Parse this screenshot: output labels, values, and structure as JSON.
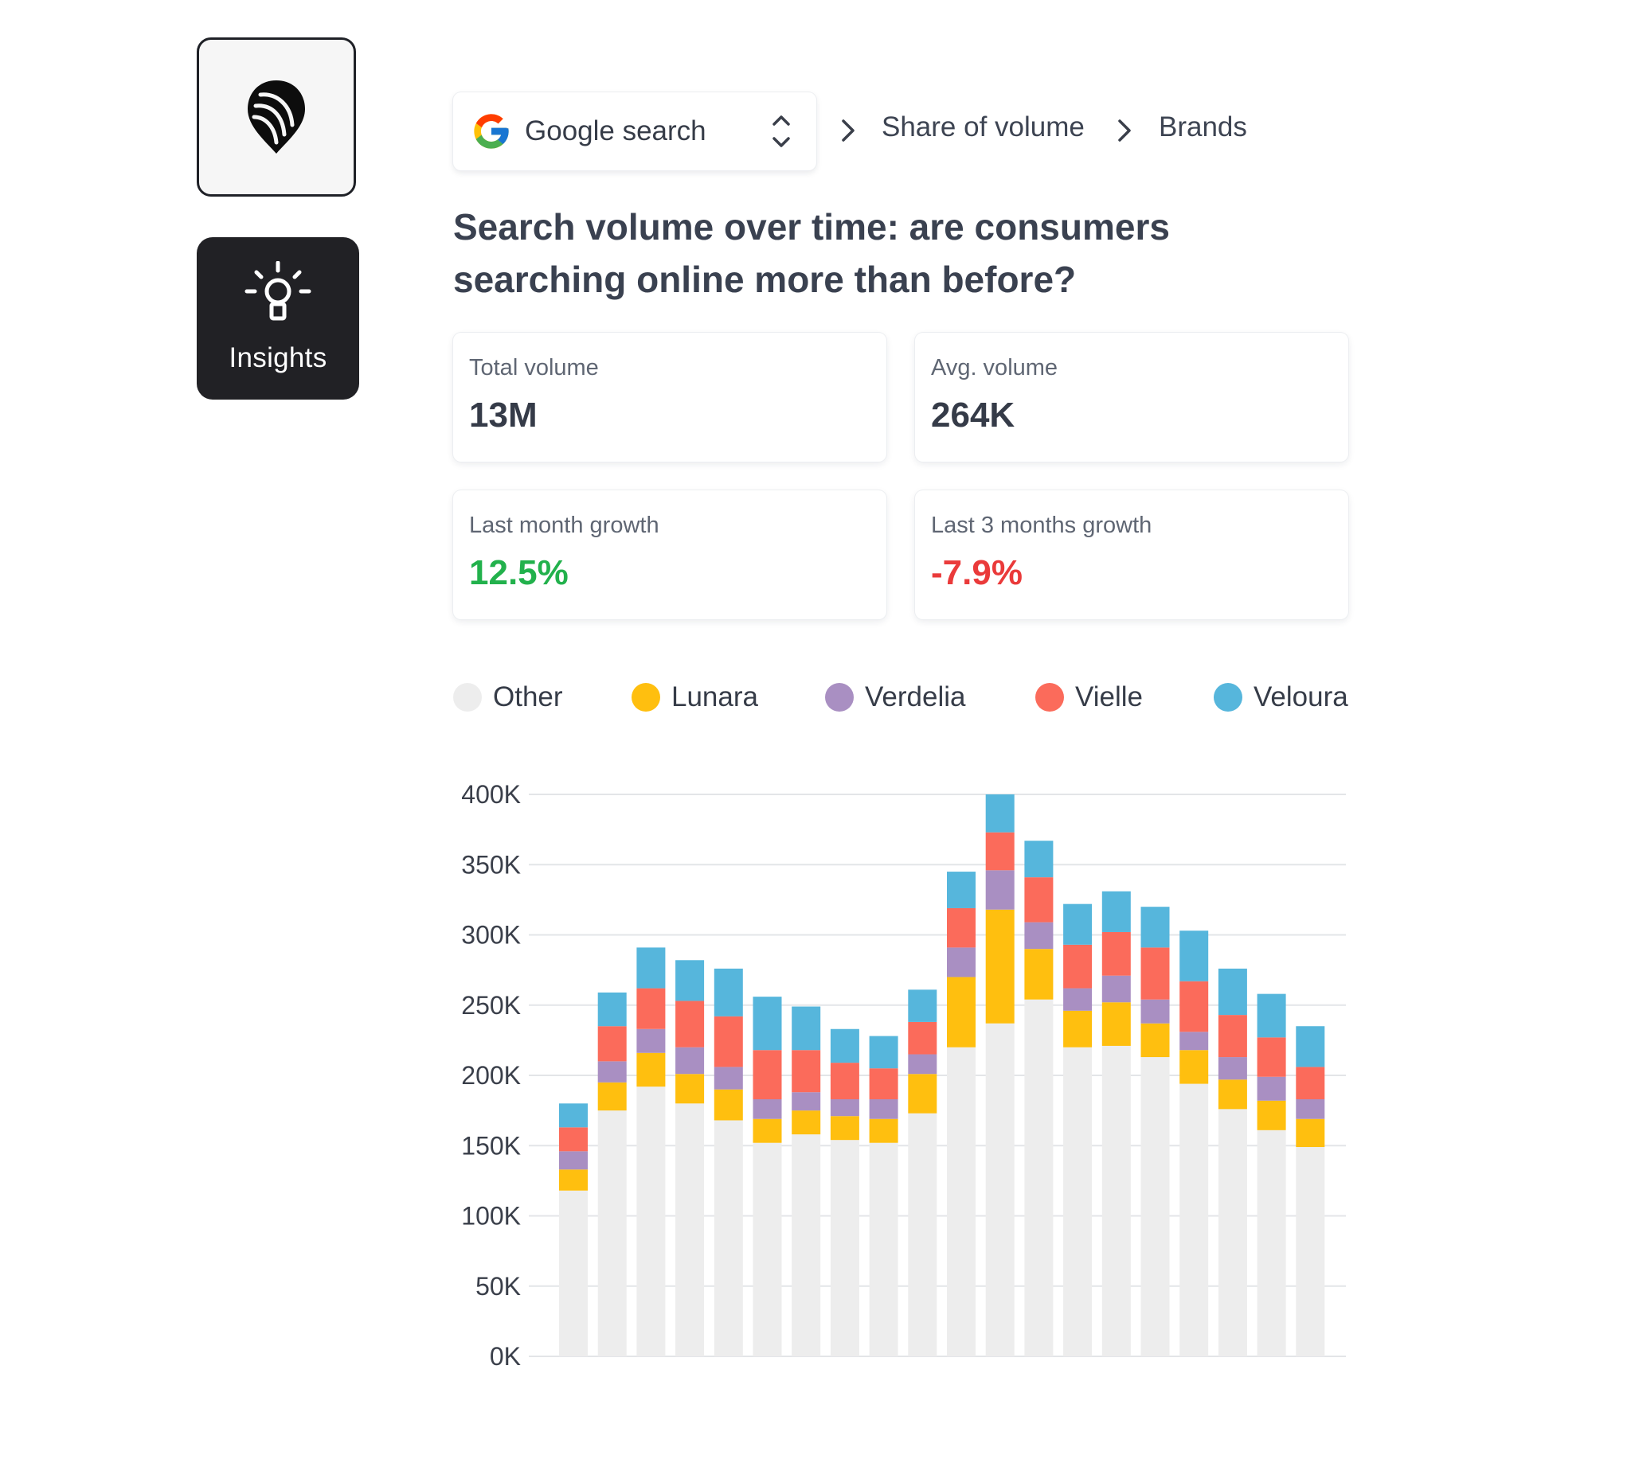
{
  "sidebar": {
    "logo_icon": "map-pin-logo-icon",
    "insights_icon": "lightbulb-icon",
    "insights_label": "Insights"
  },
  "breadcrumb": {
    "source_icon": "google-g-icon",
    "source_label": "Google search",
    "source_toggle_icon": "chevron-up-down-icon",
    "separator_icon": "chevron-right-icon",
    "items": [
      "Share of volume",
      "Brands"
    ]
  },
  "title": "Search volume over time: are consumers searching online more than before?",
  "metrics": [
    {
      "label": "Total volume",
      "value": "13M",
      "tone": "neutral"
    },
    {
      "label": "Avg. volume",
      "value": "264K",
      "tone": "neutral"
    },
    {
      "label": "Last month growth",
      "value": "12.5%",
      "tone": "positive"
    },
    {
      "label": "Last 3 months growth",
      "value": "-7.9%",
      "tone": "negative"
    }
  ],
  "colors": {
    "Other": "#ededed",
    "Lunara": "#ffbf0f",
    "Verdelia": "#a98fc2",
    "Vielle": "#fb6b5b",
    "Veloura": "#56b6dc",
    "positive": "#22b14c",
    "negative": "#ea3a3a",
    "grid": "#e3e5e8"
  },
  "chart_data": {
    "type": "bar",
    "stacked": true,
    "title": "",
    "xlabel": "",
    "ylabel": "",
    "ylim": [
      0,
      400000
    ],
    "yticks": [
      0,
      50000,
      100000,
      150000,
      200000,
      250000,
      300000,
      350000,
      400000
    ],
    "ytick_labels": [
      "0K",
      "50K",
      "100K",
      "150K",
      "200K",
      "250K",
      "300K",
      "350K",
      "400K"
    ],
    "grid": true,
    "legend_position": "top",
    "x": [
      1,
      2,
      3,
      4,
      5,
      6,
      7,
      8,
      9,
      10,
      11,
      12,
      13,
      14,
      15,
      16,
      17,
      18,
      19,
      20,
      21
    ],
    "series": [
      {
        "name": "Other",
        "values": [
          118000,
          175000,
          192000,
          180000,
          168000,
          152000,
          158000,
          154000,
          152000,
          173000,
          220000,
          237000,
          254000,
          220000,
          221000,
          213000,
          194000,
          176000,
          161000,
          149000,
          0
        ]
      },
      {
        "name": "Lunara",
        "values": [
          15000,
          20000,
          24000,
          21000,
          22000,
          17000,
          17000,
          17000,
          17000,
          28000,
          50000,
          81000,
          36000,
          26000,
          31000,
          24000,
          24000,
          21000,
          21000,
          20000,
          0
        ]
      },
      {
        "name": "Verdelia",
        "values": [
          13000,
          15000,
          17000,
          19000,
          16000,
          14000,
          13000,
          12000,
          14000,
          14000,
          21000,
          28000,
          19000,
          16000,
          19000,
          17000,
          13000,
          16000,
          17000,
          14000,
          0
        ]
      },
      {
        "name": "Vielle",
        "values": [
          17000,
          25000,
          29000,
          33000,
          36000,
          35000,
          30000,
          26000,
          22000,
          23000,
          28000,
          27000,
          32000,
          31000,
          31000,
          37000,
          36000,
          30000,
          28000,
          23000,
          0
        ]
      },
      {
        "name": "Veloura",
        "values": [
          17000,
          24000,
          29000,
          29000,
          34000,
          38000,
          31000,
          24000,
          23000,
          23000,
          26000,
          27000,
          26000,
          29000,
          29000,
          29000,
          36000,
          33000,
          31000,
          29000,
          0
        ]
      }
    ]
  }
}
